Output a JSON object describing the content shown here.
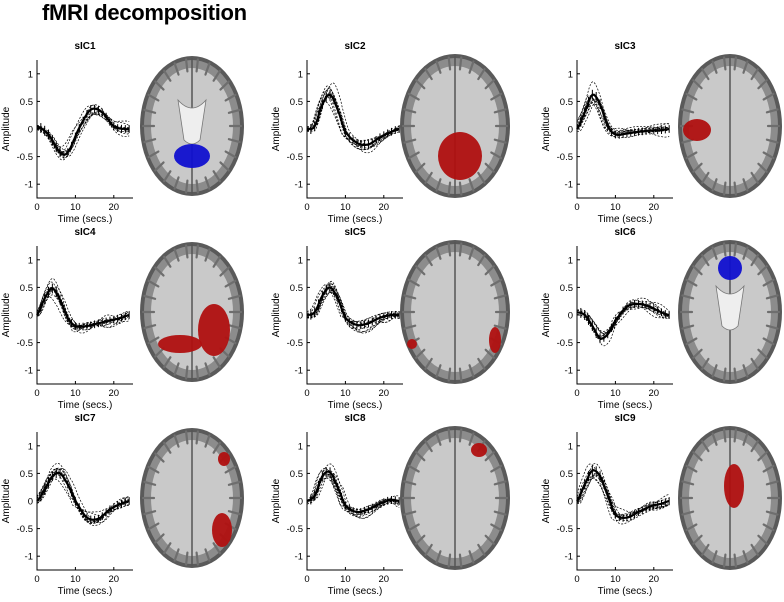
{
  "title": "fMRI decomposition",
  "axes": {
    "ylabel": "Amplitude",
    "xlabel": "Time (secs.)",
    "yticks": [
      "1",
      "0.5",
      "0",
      "-0.5",
      "-1"
    ],
    "xticks": [
      "0",
      "10",
      "20"
    ]
  },
  "chart_data": [
    {
      "type": "line",
      "title": "sIC1",
      "xlim": [
        0,
        25
      ],
      "ylim": [
        -1.25,
        1.25
      ],
      "x": [
        0,
        3,
        6,
        8,
        11,
        14,
        17,
        20,
        23,
        24
      ],
      "series": [
        {
          "values": [
            0.05,
            -0.1,
            -0.42,
            -0.42,
            0.02,
            0.35,
            0.3,
            0.05,
            0.0,
            0.0
          ]
        }
      ]
    },
    {
      "type": "line",
      "title": "sIC2",
      "xlim": [
        0,
        25
      ],
      "ylim": [
        -1.25,
        1.25
      ],
      "x": [
        0,
        2,
        4,
        6,
        8,
        10,
        13,
        16,
        19,
        22,
        24
      ],
      "series": [
        {
          "values": [
            0.0,
            0.05,
            0.45,
            0.62,
            0.35,
            -0.05,
            -0.25,
            -0.28,
            -0.15,
            -0.05,
            0.0
          ]
        }
      ]
    },
    {
      "type": "line",
      "title": "sIC3",
      "xlim": [
        0,
        25
      ],
      "ylim": [
        -1.25,
        1.25
      ],
      "x": [
        0,
        2,
        4,
        6,
        8,
        10,
        13,
        16,
        19,
        22,
        24
      ],
      "series": [
        {
          "values": [
            0.0,
            0.3,
            0.62,
            0.45,
            0.05,
            -0.1,
            -0.08,
            -0.05,
            -0.03,
            -0.02,
            0.0
          ]
        }
      ]
    },
    {
      "type": "line",
      "title": "sIC4",
      "xlim": [
        0,
        25
      ],
      "ylim": [
        -1.25,
        1.25
      ],
      "x": [
        0,
        2,
        4,
        6,
        8,
        10,
        13,
        16,
        19,
        22,
        24
      ],
      "series": [
        {
          "values": [
            0.0,
            0.3,
            0.48,
            0.28,
            -0.05,
            -0.2,
            -0.2,
            -0.15,
            -0.1,
            -0.05,
            0.0
          ]
        }
      ]
    },
    {
      "type": "line",
      "title": "sIC5",
      "xlim": [
        0,
        25
      ],
      "ylim": [
        -1.25,
        1.25
      ],
      "x": [
        0,
        2,
        4,
        6,
        8,
        10,
        13,
        16,
        19,
        22,
        24
      ],
      "series": [
        {
          "values": [
            0.0,
            0.05,
            0.35,
            0.5,
            0.3,
            -0.05,
            -0.18,
            -0.15,
            -0.05,
            0.0,
            0.0
          ]
        }
      ]
    },
    {
      "type": "line",
      "title": "sIC6",
      "xlim": [
        0,
        25
      ],
      "ylim": [
        -1.25,
        1.25
      ],
      "x": [
        0,
        2,
        4,
        6,
        8,
        10,
        13,
        16,
        19,
        22,
        24
      ],
      "series": [
        {
          "values": [
            0.05,
            0.0,
            -0.2,
            -0.42,
            -0.35,
            -0.1,
            0.15,
            0.2,
            0.15,
            0.05,
            0.0
          ]
        }
      ]
    },
    {
      "type": "line",
      "title": "sIC7",
      "xlim": [
        0,
        25
      ],
      "ylim": [
        -1.25,
        1.25
      ],
      "x": [
        0,
        2,
        4,
        6,
        8,
        10,
        13,
        16,
        19,
        22,
        24
      ],
      "series": [
        {
          "values": [
            0.0,
            0.2,
            0.45,
            0.5,
            0.3,
            0.0,
            -0.3,
            -0.32,
            -0.15,
            -0.05,
            0.0
          ]
        }
      ]
    },
    {
      "type": "line",
      "title": "sIC8",
      "xlim": [
        0,
        25
      ],
      "ylim": [
        -1.25,
        1.25
      ],
      "x": [
        0,
        2,
        4,
        6,
        8,
        10,
        13,
        16,
        19,
        22,
        24
      ],
      "series": [
        {
          "values": [
            0.0,
            0.1,
            0.45,
            0.52,
            0.25,
            -0.08,
            -0.2,
            -0.15,
            -0.05,
            0.02,
            0.0
          ]
        }
      ]
    },
    {
      "type": "line",
      "title": "sIC9",
      "xlim": [
        0,
        25
      ],
      "ylim": [
        -1.25,
        1.25
      ],
      "x": [
        0,
        2,
        4,
        6,
        8,
        10,
        13,
        16,
        19,
        22,
        24
      ],
      "series": [
        {
          "values": [
            0.0,
            0.3,
            0.55,
            0.45,
            0.1,
            -0.25,
            -0.3,
            -0.2,
            -0.1,
            -0.05,
            0.0
          ]
        }
      ]
    }
  ],
  "brain_maps": [
    {
      "panel": "sIC1",
      "view": "axial",
      "activation_color": "#1010d0"
    },
    {
      "panel": "sIC2",
      "view": "axial",
      "activation_color": "#b01010"
    },
    {
      "panel": "sIC3",
      "view": "axial",
      "activation_color": "#b01010"
    },
    {
      "panel": "sIC4",
      "view": "axial",
      "activation_color": "#b01010"
    },
    {
      "panel": "sIC5",
      "view": "axial",
      "activation_color": "#b01010"
    },
    {
      "panel": "sIC6",
      "view": "axial",
      "activation_color": "#1010d0"
    },
    {
      "panel": "sIC7",
      "view": "axial",
      "activation_color": "#b01010"
    },
    {
      "panel": "sIC8",
      "view": "axial",
      "activation_color": "#b01010"
    },
    {
      "panel": "sIC9",
      "view": "axial",
      "activation_color": "#b01010"
    }
  ]
}
